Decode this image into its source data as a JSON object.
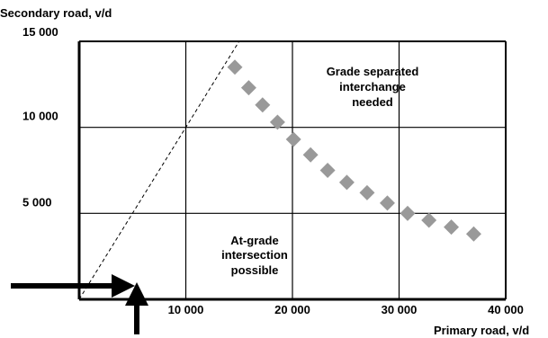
{
  "chart_data": {
    "type": "line",
    "title": "",
    "ylabel": "Secondary road, v/d",
    "xlabel": "Primary road, v/d",
    "xlim": [
      0,
      40000
    ],
    "ylim": [
      0,
      15000
    ],
    "x_ticks": [
      10000,
      20000,
      30000,
      40000
    ],
    "x_tick_labels": [
      "10 000",
      "20 000",
      "30 000",
      "40 000"
    ],
    "y_ticks": [
      5000,
      10000,
      15000
    ],
    "y_tick_labels": [
      "5 000",
      "10 000",
      "15 000"
    ],
    "grid": true,
    "series": [
      {
        "style": "dotted-thick-grey",
        "color": "#999999",
        "x": [
          14600,
          15900,
          17200,
          18600,
          20100,
          21700,
          23300,
          25100,
          27000,
          28900,
          30800,
          32800,
          34900,
          37000
        ],
        "y": [
          13500,
          12300,
          11300,
          10300,
          9300,
          8400,
          7500,
          6800,
          6200,
          5600,
          5000,
          4600,
          4200,
          3800
        ]
      },
      {
        "style": "dashed-thin-black",
        "color": "#000000",
        "x": [
          0,
          15000
        ],
        "y": [
          0,
          15000
        ]
      }
    ],
    "annotations": [
      {
        "text": "Grade separated",
        "line": 1,
        "region": "upper-right"
      },
      {
        "text": "interchange",
        "line": 2,
        "region": "upper-right"
      },
      {
        "text": "needed",
        "line": 3,
        "region": "upper-right"
      },
      {
        "text": "At-grade",
        "line": 1,
        "region": "lower-middle"
      },
      {
        "text": "intersection",
        "line": 2,
        "region": "lower-middle"
      },
      {
        "text": "possible",
        "line": 3,
        "region": "lower-middle"
      }
    ],
    "arrows": [
      {
        "direction": "right",
        "points_to_y": 0
      },
      {
        "direction": "up",
        "points_to_x": 0
      }
    ]
  }
}
